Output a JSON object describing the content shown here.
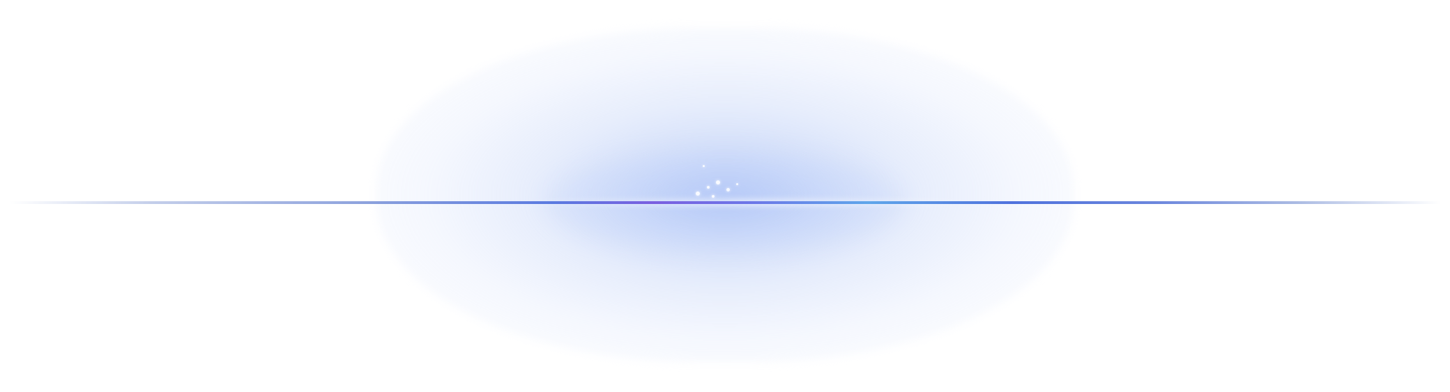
{
  "colors": {
    "background": "#ffffff",
    "glow": "#c6d4f8",
    "line_blue": "#4f72dd",
    "line_violet": "#7a5fe0",
    "line_cyan": "#5fa6ea"
  },
  "icons": [
    "glow-shape",
    "horizon-line",
    "sparkle-cluster"
  ]
}
